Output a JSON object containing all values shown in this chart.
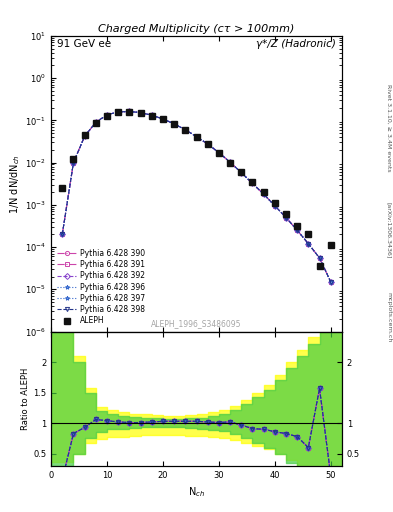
{
  "title_top": "91 GeV ee",
  "title_right": "γ*/Z (Hadronic)",
  "title_main": "Charged Multiplicity",
  "title_sub": "(cτ > 100mm)",
  "watermark": "ALEPH_1996_S3486095",
  "ylabel_main": "1/N dN/dN_ch",
  "ylabel_ratio": "Ratio to ALEPH",
  "xlabel": "N_ch",
  "right_label": "Rivet 3.1.10, ≥ 3.4M events",
  "arxiv_label": "[arXiv:1306.3436]",
  "mcplots_label": "mcplots.cern.ch",
  "aleph_x": [
    2,
    4,
    6,
    8,
    10,
    12,
    14,
    16,
    18,
    20,
    22,
    24,
    26,
    28,
    30,
    32,
    34,
    36,
    38,
    40,
    42,
    44,
    46,
    48,
    50
  ],
  "aleph_y": [
    0.0025,
    0.012,
    0.045,
    0.085,
    0.13,
    0.155,
    0.16,
    0.15,
    0.13,
    0.105,
    0.08,
    0.058,
    0.04,
    0.027,
    0.017,
    0.01,
    0.006,
    0.0035,
    0.002,
    0.0011,
    0.0006,
    0.00032,
    0.0002,
    3.5e-05,
    0.00011
  ],
  "mc_x": [
    2,
    4,
    6,
    8,
    10,
    12,
    14,
    16,
    18,
    20,
    22,
    24,
    26,
    28,
    30,
    32,
    34,
    36,
    38,
    40,
    42,
    44,
    46,
    48,
    50
  ],
  "mc390_y": [
    0.0002,
    0.01,
    0.042,
    0.09,
    0.135,
    0.158,
    0.162,
    0.152,
    0.132,
    0.108,
    0.082,
    0.06,
    0.041,
    0.0275,
    0.0172,
    0.0102,
    0.0058,
    0.0032,
    0.0018,
    0.00095,
    0.0005,
    0.00025,
    0.00012,
    5.5e-05,
    1.5e-05
  ],
  "mc391_y": [
    0.0002,
    0.01,
    0.042,
    0.09,
    0.135,
    0.158,
    0.162,
    0.152,
    0.132,
    0.108,
    0.082,
    0.06,
    0.041,
    0.0275,
    0.0172,
    0.0102,
    0.0058,
    0.0032,
    0.0018,
    0.00095,
    0.0005,
    0.00025,
    0.00012,
    5.5e-05,
    1.5e-05
  ],
  "mc392_y": [
    0.0002,
    0.01,
    0.042,
    0.09,
    0.135,
    0.158,
    0.162,
    0.152,
    0.132,
    0.108,
    0.082,
    0.06,
    0.041,
    0.0275,
    0.0172,
    0.0102,
    0.0058,
    0.0032,
    0.0018,
    0.00095,
    0.0005,
    0.00025,
    0.00012,
    5.5e-05,
    1.5e-05
  ],
  "mc396_y": [
    0.0002,
    0.01,
    0.042,
    0.09,
    0.135,
    0.158,
    0.162,
    0.152,
    0.132,
    0.108,
    0.082,
    0.06,
    0.041,
    0.0275,
    0.0172,
    0.0102,
    0.0058,
    0.0032,
    0.0018,
    0.00095,
    0.0005,
    0.00025,
    0.00012,
    5.5e-05,
    1.5e-05
  ],
  "mc397_y": [
    0.0002,
    0.01,
    0.042,
    0.09,
    0.135,
    0.158,
    0.162,
    0.152,
    0.132,
    0.108,
    0.082,
    0.06,
    0.041,
    0.0275,
    0.0172,
    0.0102,
    0.0058,
    0.0032,
    0.0018,
    0.00095,
    0.0005,
    0.00025,
    0.00012,
    5.5e-05,
    1.5e-05
  ],
  "mc398_y": [
    0.0002,
    0.01,
    0.042,
    0.09,
    0.135,
    0.158,
    0.162,
    0.152,
    0.132,
    0.108,
    0.082,
    0.06,
    0.041,
    0.0275,
    0.0172,
    0.0102,
    0.0058,
    0.0032,
    0.0018,
    0.00095,
    0.0005,
    0.00025,
    0.00012,
    5.5e-05,
    1.5e-05
  ],
  "ratio390": [
    0.08,
    0.83,
    0.93,
    1.06,
    1.04,
    1.02,
    1.01,
    1.01,
    1.02,
    1.03,
    1.03,
    1.03,
    1.03,
    1.02,
    1.01,
    1.02,
    0.97,
    0.91,
    0.9,
    0.86,
    0.83,
    0.78,
    0.6,
    1.57,
    0.14
  ],
  "ratio391": [
    0.08,
    0.83,
    0.93,
    1.06,
    1.04,
    1.02,
    1.01,
    1.01,
    1.02,
    1.03,
    1.03,
    1.03,
    1.03,
    1.02,
    1.01,
    1.02,
    0.97,
    0.91,
    0.9,
    0.86,
    0.83,
    0.78,
    0.6,
    1.57,
    0.14
  ],
  "ratio392": [
    0.08,
    0.83,
    0.93,
    1.06,
    1.04,
    1.02,
    1.01,
    1.01,
    1.02,
    1.03,
    1.03,
    1.03,
    1.03,
    1.02,
    1.01,
    1.02,
    0.97,
    0.91,
    0.9,
    0.86,
    0.83,
    0.78,
    0.6,
    1.57,
    0.14
  ],
  "ratio396": [
    0.08,
    0.83,
    0.93,
    1.06,
    1.04,
    1.02,
    1.01,
    1.01,
    1.02,
    1.03,
    1.03,
    1.03,
    1.03,
    1.02,
    1.01,
    1.02,
    0.97,
    0.91,
    0.9,
    0.86,
    0.83,
    0.78,
    0.6,
    1.57,
    0.14
  ],
  "ratio397": [
    0.08,
    0.83,
    0.93,
    1.06,
    1.04,
    1.02,
    1.01,
    1.01,
    1.02,
    1.03,
    1.03,
    1.03,
    1.03,
    1.02,
    1.01,
    1.02,
    0.97,
    0.91,
    0.9,
    0.86,
    0.83,
    0.78,
    0.6,
    1.57,
    0.14
  ],
  "ratio398": [
    0.08,
    0.83,
    0.93,
    1.06,
    1.04,
    1.02,
    1.01,
    1.01,
    1.02,
    1.03,
    1.03,
    1.03,
    1.03,
    1.02,
    1.01,
    1.02,
    0.97,
    0.91,
    0.9,
    0.86,
    0.83,
    0.78,
    0.6,
    1.57,
    0.14
  ],
  "band_green_x": [
    0,
    4,
    4,
    6,
    6,
    8,
    8,
    10,
    10,
    12,
    12,
    14,
    14,
    16,
    16,
    18,
    18,
    20,
    20,
    22,
    22,
    24,
    24,
    26,
    26,
    28,
    28,
    30,
    30,
    32,
    32,
    34,
    34,
    36,
    36,
    38,
    38,
    40,
    40,
    42,
    42,
    44,
    44,
    46,
    46,
    48,
    48,
    52
  ],
  "band_green_lo": [
    0.3,
    0.3,
    0.5,
    0.5,
    0.75,
    0.75,
    0.85,
    0.85,
    0.9,
    0.9,
    0.9,
    0.9,
    0.92,
    0.92,
    0.93,
    0.93,
    0.94,
    0.94,
    0.94,
    0.94,
    0.93,
    0.93,
    0.92,
    0.92,
    0.91,
    0.91,
    0.89,
    0.89,
    0.87,
    0.87,
    0.82,
    0.82,
    0.75,
    0.75,
    0.68,
    0.68,
    0.6,
    0.6,
    0.5,
    0.5,
    0.35,
    0.35,
    0.2,
    0.2,
    0.1,
    0.1,
    0.0,
    0.0
  ],
  "band_green_hi": [
    2.5,
    2.5,
    2.0,
    2.0,
    1.5,
    1.5,
    1.2,
    1.2,
    1.15,
    1.15,
    1.12,
    1.12,
    1.1,
    1.1,
    1.09,
    1.09,
    1.08,
    1.08,
    1.07,
    1.07,
    1.07,
    1.07,
    1.08,
    1.08,
    1.09,
    1.09,
    1.12,
    1.12,
    1.15,
    1.15,
    1.22,
    1.22,
    1.32,
    1.32,
    1.42,
    1.42,
    1.55,
    1.55,
    1.7,
    1.7,
    1.9,
    1.9,
    2.1,
    2.1,
    2.3,
    2.3,
    2.5,
    2.5
  ],
  "xlim": [
    0,
    52
  ],
  "ylim_main": [
    1e-06,
    10
  ],
  "ylim_ratio": [
    0.3,
    2.5
  ],
  "color_aleph": "#111111",
  "color_390": "#cc44aa",
  "color_391": "#cc44aa",
  "color_392": "#8844cc",
  "color_396": "#3366cc",
  "color_397": "#3366cc",
  "color_398": "#223388",
  "legend_entries": [
    "ALEPH",
    "Pythia 6.428 390",
    "Pythia 6.428 391",
    "Pythia 6.428 392",
    "Pythia 6.428 396",
    "Pythia 6.428 397",
    "Pythia 6.428 398"
  ]
}
